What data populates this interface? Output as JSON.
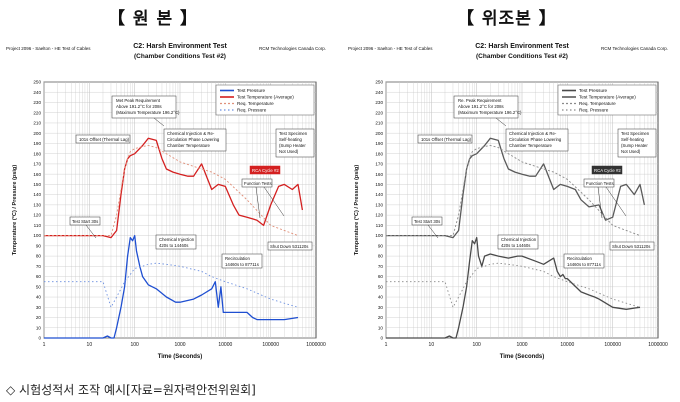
{
  "headings": {
    "left": "【 원 본 】",
    "right": "【 위조본 】"
  },
  "caption": "◇ 시험성적서 조작 예시[자료=원자력안전위원회]",
  "colors": {
    "left_pressure": "#1f4fd1",
    "left_temperature": "#d42020",
    "left_req_temperature": "#e0907a",
    "left_req_pressure": "#6b8fe0",
    "right_pressure": "#4a4a4a",
    "right_temperature": "#5a5a5a",
    "right_req": "#8a8a8a",
    "grid": "#c8c8c8"
  },
  "chart_data": [
    {
      "type": "line",
      "panel": "original",
      "title": "C2: Harsh Environment Test",
      "subtitle": "(Chamber Conditions Test #2)",
      "header_left": "Project 2096 - Saelton - HE Test of Cables",
      "header_right": "RCM Technologies Canada Corp.",
      "xlabel": "Time (Seconds)",
      "ylabel": "Temperature (°C) / Pressure (psig)",
      "xscale": "log",
      "xlim": [
        1,
        1000000
      ],
      "ylim": [
        0,
        250
      ],
      "xticks": [
        1,
        10,
        100,
        1000,
        10000,
        100000,
        1000000
      ],
      "xtick_labels": [
        "1",
        "10",
        "100",
        "1000",
        "10000",
        "100000",
        "1000000"
      ],
      "ytick_labels": [
        "0",
        "10",
        "20",
        "30",
        "40",
        "50",
        "60",
        "70",
        "80",
        "90",
        "100",
        "110",
        "120",
        "130",
        "140",
        "150",
        "160",
        "170",
        "180",
        "190",
        "200",
        "210",
        "220",
        "230",
        "240",
        "250"
      ],
      "grid": true,
      "legend_position": "top-right",
      "legend": [
        "Test Pressure",
        "Test Temperature (Average)",
        "Req. Temperature",
        "Req. Pressure"
      ],
      "series": [
        {
          "name": "Test Pressure",
          "x": [
            1,
            20,
            25,
            30,
            35,
            40,
            50,
            60,
            70,
            80,
            90,
            100,
            110,
            130,
            150,
            200,
            300,
            500,
            800,
            1000,
            2000,
            3000,
            5000,
            6000,
            7000,
            8000,
            9000,
            10000,
            20000,
            30000,
            40000,
            50000,
            100000,
            200000,
            400000
          ],
          "y": [
            0,
            0,
            2,
            0,
            0,
            10,
            30,
            50,
            80,
            98,
            95,
            100,
            85,
            70,
            60,
            52,
            48,
            40,
            35,
            35,
            38,
            42,
            48,
            55,
            30,
            50,
            25,
            25,
            25,
            25,
            20,
            18,
            18,
            18,
            20
          ]
        },
        {
          "name": "Test Temperature (Average)",
          "x": [
            1,
            20,
            30,
            40,
            50,
            60,
            70,
            80,
            100,
            150,
            200,
            300,
            400,
            500,
            700,
            1000,
            1500,
            2000,
            3000,
            5000,
            7000,
            10000,
            15000,
            20000,
            30000,
            50000,
            70000,
            100000,
            150000,
            200000,
            300000,
            400000,
            500000
          ],
          "y": [
            100,
            100,
            98,
            105,
            140,
            165,
            175,
            178,
            180,
            188,
            195,
            193,
            175,
            165,
            162,
            160,
            158,
            158,
            170,
            145,
            150,
            148,
            130,
            120,
            118,
            115,
            110,
            130,
            148,
            150,
            145,
            150,
            125
          ]
        },
        {
          "name": "Req. Temperature",
          "x": [
            1,
            20,
            30,
            40,
            50,
            60,
            70,
            80,
            100,
            150,
            200,
            300,
            500,
            1000,
            3000,
            5000,
            10000,
            30000,
            100000,
            400000
          ],
          "y": [
            100,
            100,
            100,
            120,
            145,
            165,
            175,
            182,
            185,
            187,
            188,
            186,
            180,
            172,
            165,
            162,
            155,
            135,
            110,
            100
          ]
        },
        {
          "name": "Req. Pressure",
          "x": [
            1,
            20,
            30,
            40,
            50,
            60,
            80,
            100,
            150,
            200,
            300,
            500,
            1000,
            3000,
            5000,
            10000,
            30000,
            100000,
            400000
          ],
          "y": [
            55,
            55,
            30,
            40,
            48,
            55,
            62,
            68,
            70,
            72,
            73,
            72,
            70,
            65,
            60,
            55,
            48,
            38,
            30
          ]
        }
      ],
      "annotations": [
        "Met Peak Requirement",
        "Above 191.2°C for 208s",
        "(Maximum Temperature 196.2°C)",
        "101s Offset (Thermal Lag)",
        "Chemical Injection & Re-",
        "Circulation Phase Lowering",
        "Chamber Temperature",
        "Test Specimen",
        "Self-heating",
        "(Sump Heater",
        "Not Used)",
        "RCA Cycle #2",
        "Function Tests",
        "Test Start 30s",
        "Chemical Injection",
        "420s to 14460s",
        "Recirculation",
        "14460s to 87711s",
        "Shut Down 531120s"
      ]
    },
    {
      "type": "line",
      "panel": "forged",
      "title": "C2: Harsh Environment Test",
      "subtitle": "(Chamber Conditions Test #2)",
      "header_left": "Project 2096 - Saelton - HE Test of Cables",
      "header_right": "RCM Technologies Canada Corp.",
      "xlabel": "Time (Seconds)",
      "ylabel": "Temperature (°C) / Pressure (psig)",
      "xscale": "log",
      "xlim": [
        1,
        1000000
      ],
      "ylim": [
        0,
        250
      ],
      "xticks": [
        1,
        10,
        100,
        1000,
        10000,
        100000,
        1000000
      ],
      "xtick_labels": [
        "1",
        "10",
        "100",
        "1000",
        "10000",
        "100000",
        "1000000"
      ],
      "ytick_labels": [
        "0",
        "10",
        "20",
        "30",
        "40",
        "50",
        "60",
        "70",
        "80",
        "90",
        "100",
        "110",
        "120",
        "130",
        "140",
        "150",
        "160",
        "170",
        "180",
        "190",
        "200",
        "210",
        "220",
        "230",
        "240",
        "250"
      ],
      "grid": true,
      "legend_position": "top-right",
      "legend": [
        "Test Pressure",
        "Test Temperature (Average)",
        "Req. Temperature",
        "Req. Pressure"
      ],
      "series": [
        {
          "name": "Test Pressure",
          "x": [
            1,
            20,
            25,
            30,
            35,
            40,
            50,
            60,
            70,
            80,
            90,
            100,
            110,
            130,
            150,
            200,
            300,
            500,
            800,
            1000,
            2000,
            3000,
            5000,
            6000,
            7000,
            8000,
            9000,
            10000,
            20000,
            30000,
            40000,
            50000,
            100000,
            200000,
            400000
          ],
          "y": [
            0,
            0,
            2,
            0,
            0,
            10,
            30,
            50,
            75,
            95,
            92,
            98,
            80,
            70,
            80,
            82,
            80,
            78,
            80,
            80,
            75,
            72,
            78,
            65,
            60,
            62,
            58,
            58,
            45,
            42,
            40,
            38,
            30,
            28,
            30
          ]
        },
        {
          "name": "Test Temperature (Average)",
          "x": [
            1,
            20,
            30,
            40,
            50,
            60,
            70,
            80,
            100,
            150,
            200,
            300,
            400,
            500,
            700,
            1000,
            1500,
            2000,
            3000,
            5000,
            7000,
            10000,
            15000,
            20000,
            30000,
            50000,
            70000,
            100000,
            150000,
            200000,
            300000,
            400000,
            500000
          ],
          "y": [
            100,
            100,
            98,
            105,
            140,
            165,
            175,
            178,
            180,
            188,
            195,
            193,
            175,
            165,
            162,
            160,
            158,
            158,
            170,
            145,
            150,
            148,
            145,
            135,
            128,
            130,
            115,
            118,
            148,
            150,
            140,
            150,
            130
          ]
        },
        {
          "name": "Req. Temperature",
          "x": [
            1,
            20,
            30,
            40,
            50,
            60,
            70,
            80,
            100,
            150,
            200,
            300,
            500,
            1000,
            3000,
            5000,
            10000,
            30000,
            100000,
            400000
          ],
          "y": [
            100,
            100,
            100,
            120,
            145,
            165,
            175,
            182,
            185,
            187,
            188,
            186,
            180,
            172,
            165,
            162,
            155,
            135,
            110,
            100
          ]
        },
        {
          "name": "Req. Pressure",
          "x": [
            1,
            20,
            30,
            40,
            50,
            60,
            80,
            100,
            150,
            200,
            300,
            500,
            1000,
            3000,
            5000,
            10000,
            30000,
            100000,
            400000
          ],
          "y": [
            55,
            55,
            30,
            40,
            48,
            55,
            62,
            68,
            70,
            72,
            73,
            72,
            70,
            65,
            60,
            55,
            48,
            38,
            30
          ]
        }
      ],
      "annotations": [
        "Re. Peak Requirement",
        "Above 191.2°C for 208s",
        "(Maximum Temperature 196.2°C)",
        "101s Offset (Thermal Lag)",
        "Chemical Injection & Re-",
        "Circulation Phase Lowering",
        "Chamber Temperature",
        "Test Specimen",
        "Self-heating",
        "(Sump Heater",
        "Not Used)",
        "RCA Cycle #2",
        "Function Tests",
        "Test Start 30s",
        "Chemical Injection",
        "420s to 14460s",
        "Recirculation",
        "14460s to 87711s",
        "Shut Down 531120s"
      ]
    }
  ]
}
